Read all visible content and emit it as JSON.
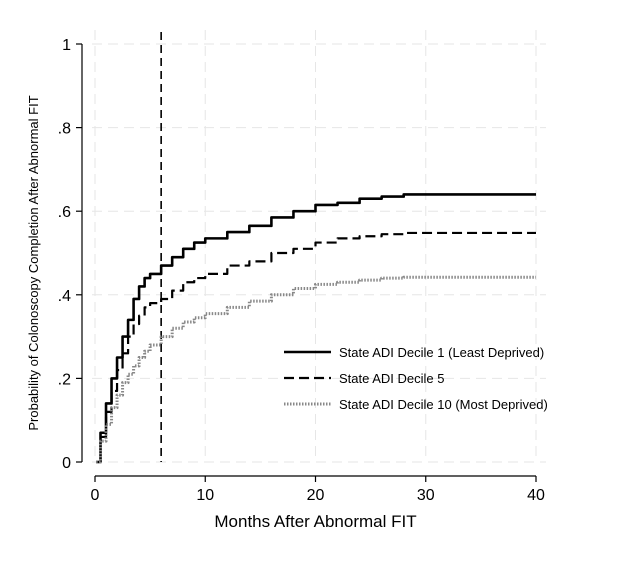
{
  "chart_data": {
    "type": "line",
    "xlabel": "Months After Abnormal FIT",
    "ylabel": "Probability of Colonoscopy Completion After Abnormal FIT",
    "xlim": [
      0,
      40
    ],
    "ylim": [
      0,
      1
    ],
    "x_ticks": [
      0,
      10,
      20,
      30,
      40
    ],
    "y_ticks": [
      0,
      0.2,
      0.4,
      0.6,
      0.8,
      1
    ],
    "x_tick_labels": [
      "0",
      "10",
      "20",
      "30",
      "40"
    ],
    "y_tick_labels": [
      "0",
      ".2",
      ".4",
      ".6",
      ".8",
      "1"
    ],
    "grid": true,
    "reference_line_x": 6,
    "legend_position": "lower-right",
    "series": [
      {
        "name": "State ADI Decile 1 (Least Deprived)",
        "style": "solid",
        "color": "#000000",
        "x": [
          0.1,
          0.5,
          1,
          1.5,
          2,
          2.5,
          3,
          3.5,
          4,
          4.5,
          5,
          6,
          7,
          8,
          9,
          10,
          12,
          14,
          16,
          18,
          20,
          22,
          24,
          26,
          27,
          28,
          30,
          35,
          40
        ],
        "y": [
          0.0,
          0.07,
          0.14,
          0.2,
          0.25,
          0.3,
          0.34,
          0.39,
          0.42,
          0.44,
          0.45,
          0.47,
          0.49,
          0.51,
          0.525,
          0.535,
          0.55,
          0.565,
          0.585,
          0.6,
          0.615,
          0.62,
          0.63,
          0.635,
          0.635,
          0.64,
          0.64,
          0.64,
          0.64
        ]
      },
      {
        "name": "State ADI Decile 5",
        "style": "dashed",
        "color": "#000000",
        "x": [
          0.1,
          0.5,
          1,
          1.5,
          2,
          2.5,
          3,
          3.5,
          4,
          4.5,
          5,
          6,
          7,
          8,
          9,
          10,
          12,
          14,
          16,
          18,
          20,
          22,
          24,
          26,
          27,
          28,
          30,
          35,
          40
        ],
        "y": [
          0.0,
          0.06,
          0.12,
          0.17,
          0.22,
          0.26,
          0.3,
          0.33,
          0.35,
          0.37,
          0.38,
          0.39,
          0.41,
          0.43,
          0.44,
          0.45,
          0.47,
          0.48,
          0.5,
          0.51,
          0.525,
          0.535,
          0.54,
          0.545,
          0.545,
          0.548,
          0.548,
          0.548,
          0.548
        ]
      },
      {
        "name": "State ADI Decile 10 (Most Deprived)",
        "style": "dotted",
        "color": "#888888",
        "x": [
          0.1,
          0.5,
          1,
          1.5,
          2,
          2.5,
          3,
          3.5,
          4,
          4.5,
          5,
          6,
          7,
          8,
          9,
          10,
          12,
          14,
          16,
          18,
          20,
          22,
          24,
          26,
          27,
          28,
          30,
          35,
          40
        ],
        "y": [
          0.0,
          0.05,
          0.09,
          0.13,
          0.16,
          0.19,
          0.21,
          0.23,
          0.25,
          0.265,
          0.28,
          0.3,
          0.32,
          0.335,
          0.345,
          0.355,
          0.37,
          0.385,
          0.4,
          0.415,
          0.425,
          0.43,
          0.435,
          0.44,
          0.44,
          0.442,
          0.442,
          0.442,
          0.442
        ]
      }
    ]
  }
}
